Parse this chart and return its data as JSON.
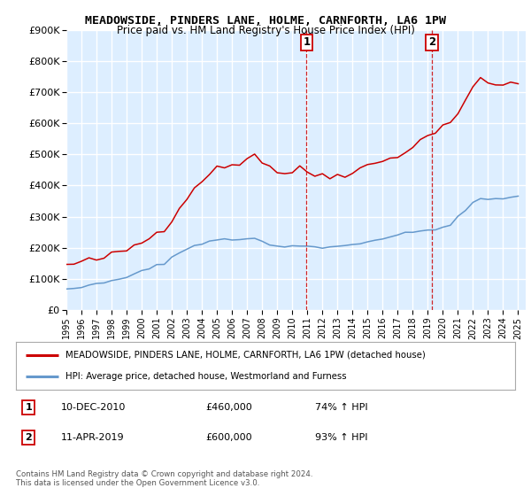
{
  "title": "MEADOWSIDE, PINDERS LANE, HOLME, CARNFORTH, LA6 1PW",
  "subtitle": "Price paid vs. HM Land Registry's House Price Index (HPI)",
  "legend_line1": "MEADOWSIDE, PINDERS LANE, HOLME, CARNFORTH, LA6 1PW (detached house)",
  "legend_line2": "HPI: Average price, detached house, Westmorland and Furness",
  "annotation1_date": "10-DEC-2010",
  "annotation1_price": "£460,000",
  "annotation1_hpi": "74% ↑ HPI",
  "annotation2_date": "11-APR-2019",
  "annotation2_price": "£600,000",
  "annotation2_hpi": "93% ↑ HPI",
  "vline1_x": 2010.95,
  "vline2_x": 2019.28,
  "marker1_label": "1",
  "marker2_label": "2",
  "footer": "Contains HM Land Registry data © Crown copyright and database right 2024.\nThis data is licensed under the Open Government Licence v3.0.",
  "ylim": [
    0,
    900000
  ],
  "xlim": [
    1995,
    2025.5
  ],
  "red_color": "#cc0000",
  "blue_color": "#6699cc",
  "vline_color": "#cc0000",
  "plot_bg": "#ddeeff",
  "grid_color": "#ffffff",
  "years_red": [
    1995,
    1995.5,
    1996,
    1996.5,
    1997,
    1997.5,
    1998,
    1998.5,
    1999,
    1999.5,
    2000,
    2000.5,
    2001,
    2001.5,
    2002,
    2002.5,
    2003,
    2003.5,
    2004,
    2004.5,
    2005,
    2005.5,
    2006,
    2006.5,
    2007,
    2007.5,
    2008,
    2008.5,
    2009,
    2009.5,
    2010,
    2010.5,
    2011,
    2011.5,
    2012,
    2012.5,
    2013,
    2013.5,
    2014,
    2014.5,
    2015,
    2015.5,
    2016,
    2016.5,
    2017,
    2017.5,
    2018,
    2018.5,
    2019,
    2019.5,
    2020,
    2020.5,
    2021,
    2021.5,
    2022,
    2022.5,
    2023,
    2023.5,
    2024,
    2024.5,
    2025
  ],
  "red_values": [
    143000,
    148000,
    152000,
    157000,
    162000,
    168000,
    175000,
    183000,
    193000,
    205000,
    218000,
    232000,
    248000,
    265000,
    295000,
    330000,
    362000,
    390000,
    418000,
    445000,
    452000,
    458000,
    466000,
    475000,
    490000,
    500000,
    480000,
    460000,
    445000,
    440000,
    445000,
    450000,
    443000,
    437000,
    432000,
    430000,
    434000,
    440000,
    448000,
    455000,
    462000,
    470000,
    478000,
    490000,
    500000,
    510000,
    525000,
    540000,
    558000,
    580000,
    592000,
    605000,
    635000,
    670000,
    710000,
    740000,
    735000,
    725000,
    720000,
    725000,
    730000
  ],
  "years_hpi": [
    1995,
    1995.5,
    1996,
    1996.5,
    1997,
    1997.5,
    1998,
    1998.5,
    1999,
    1999.5,
    2000,
    2000.5,
    2001,
    2001.5,
    2002,
    2002.5,
    2003,
    2003.5,
    2004,
    2004.5,
    2005,
    2005.5,
    2006,
    2006.5,
    2007,
    2007.5,
    2008,
    2008.5,
    2009,
    2009.5,
    2010,
    2010.5,
    2011,
    2011.5,
    2012,
    2012.5,
    2013,
    2013.5,
    2014,
    2014.5,
    2015,
    2015.5,
    2016,
    2016.5,
    2017,
    2017.5,
    2018,
    2018.5,
    2019,
    2019.5,
    2020,
    2020.5,
    2021,
    2021.5,
    2022,
    2022.5,
    2023,
    2023.5,
    2024,
    2024.5,
    2025
  ],
  "hpi_values": [
    68000,
    72000,
    75000,
    78000,
    82000,
    87000,
    92000,
    98000,
    106000,
    115000,
    123000,
    132000,
    142000,
    153000,
    168000,
    183000,
    196000,
    207000,
    216000,
    222000,
    224000,
    225000,
    226000,
    228000,
    230000,
    228000,
    220000,
    210000,
    204000,
    202000,
    204000,
    207000,
    206000,
    204000,
    202000,
    202000,
    204000,
    207000,
    211000,
    216000,
    220000,
    225000,
    230000,
    235000,
    240000,
    245000,
    249000,
    253000,
    257000,
    262000,
    266000,
    272000,
    295000,
    320000,
    345000,
    358000,
    358000,
    355000,
    355000,
    360000,
    368000
  ]
}
